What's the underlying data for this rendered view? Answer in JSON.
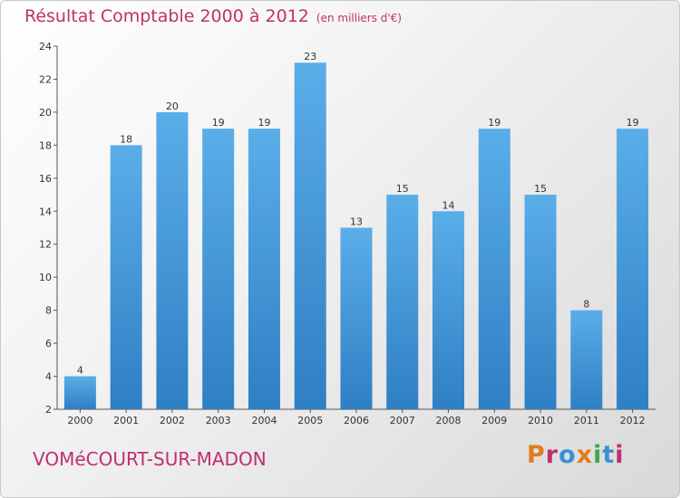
{
  "chart_data": {
    "type": "bar",
    "title": "Résultat Comptable 2000 à 2012",
    "subtitle": "(en milliers d'€)",
    "xlabel": "",
    "ylabel": "",
    "categories": [
      "2000",
      "2001",
      "2002",
      "2003",
      "2004",
      "2005",
      "2006",
      "2007",
      "2008",
      "2009",
      "2010",
      "2011",
      "2012"
    ],
    "values": [
      4,
      18,
      20,
      19,
      19,
      23,
      13,
      15,
      14,
      19,
      15,
      8,
      19
    ],
    "ylim": [
      2,
      24
    ],
    "yticks": [
      2,
      4,
      6,
      8,
      10,
      12,
      14,
      16,
      18,
      20,
      22,
      24
    ],
    "grid": false,
    "bar_color": "#4a9fe0"
  },
  "footer": {
    "commune": "VOMéCOURT-SUR-MADON",
    "logo_text": "Proxiti",
    "logo_colors": [
      "#e07b1f",
      "#c0306f",
      "#3a8fd6",
      "#e07b1f",
      "#3aa84a",
      "#3a8fd6",
      "#c0306f"
    ]
  },
  "colors": {
    "accent": "#c0306f"
  }
}
